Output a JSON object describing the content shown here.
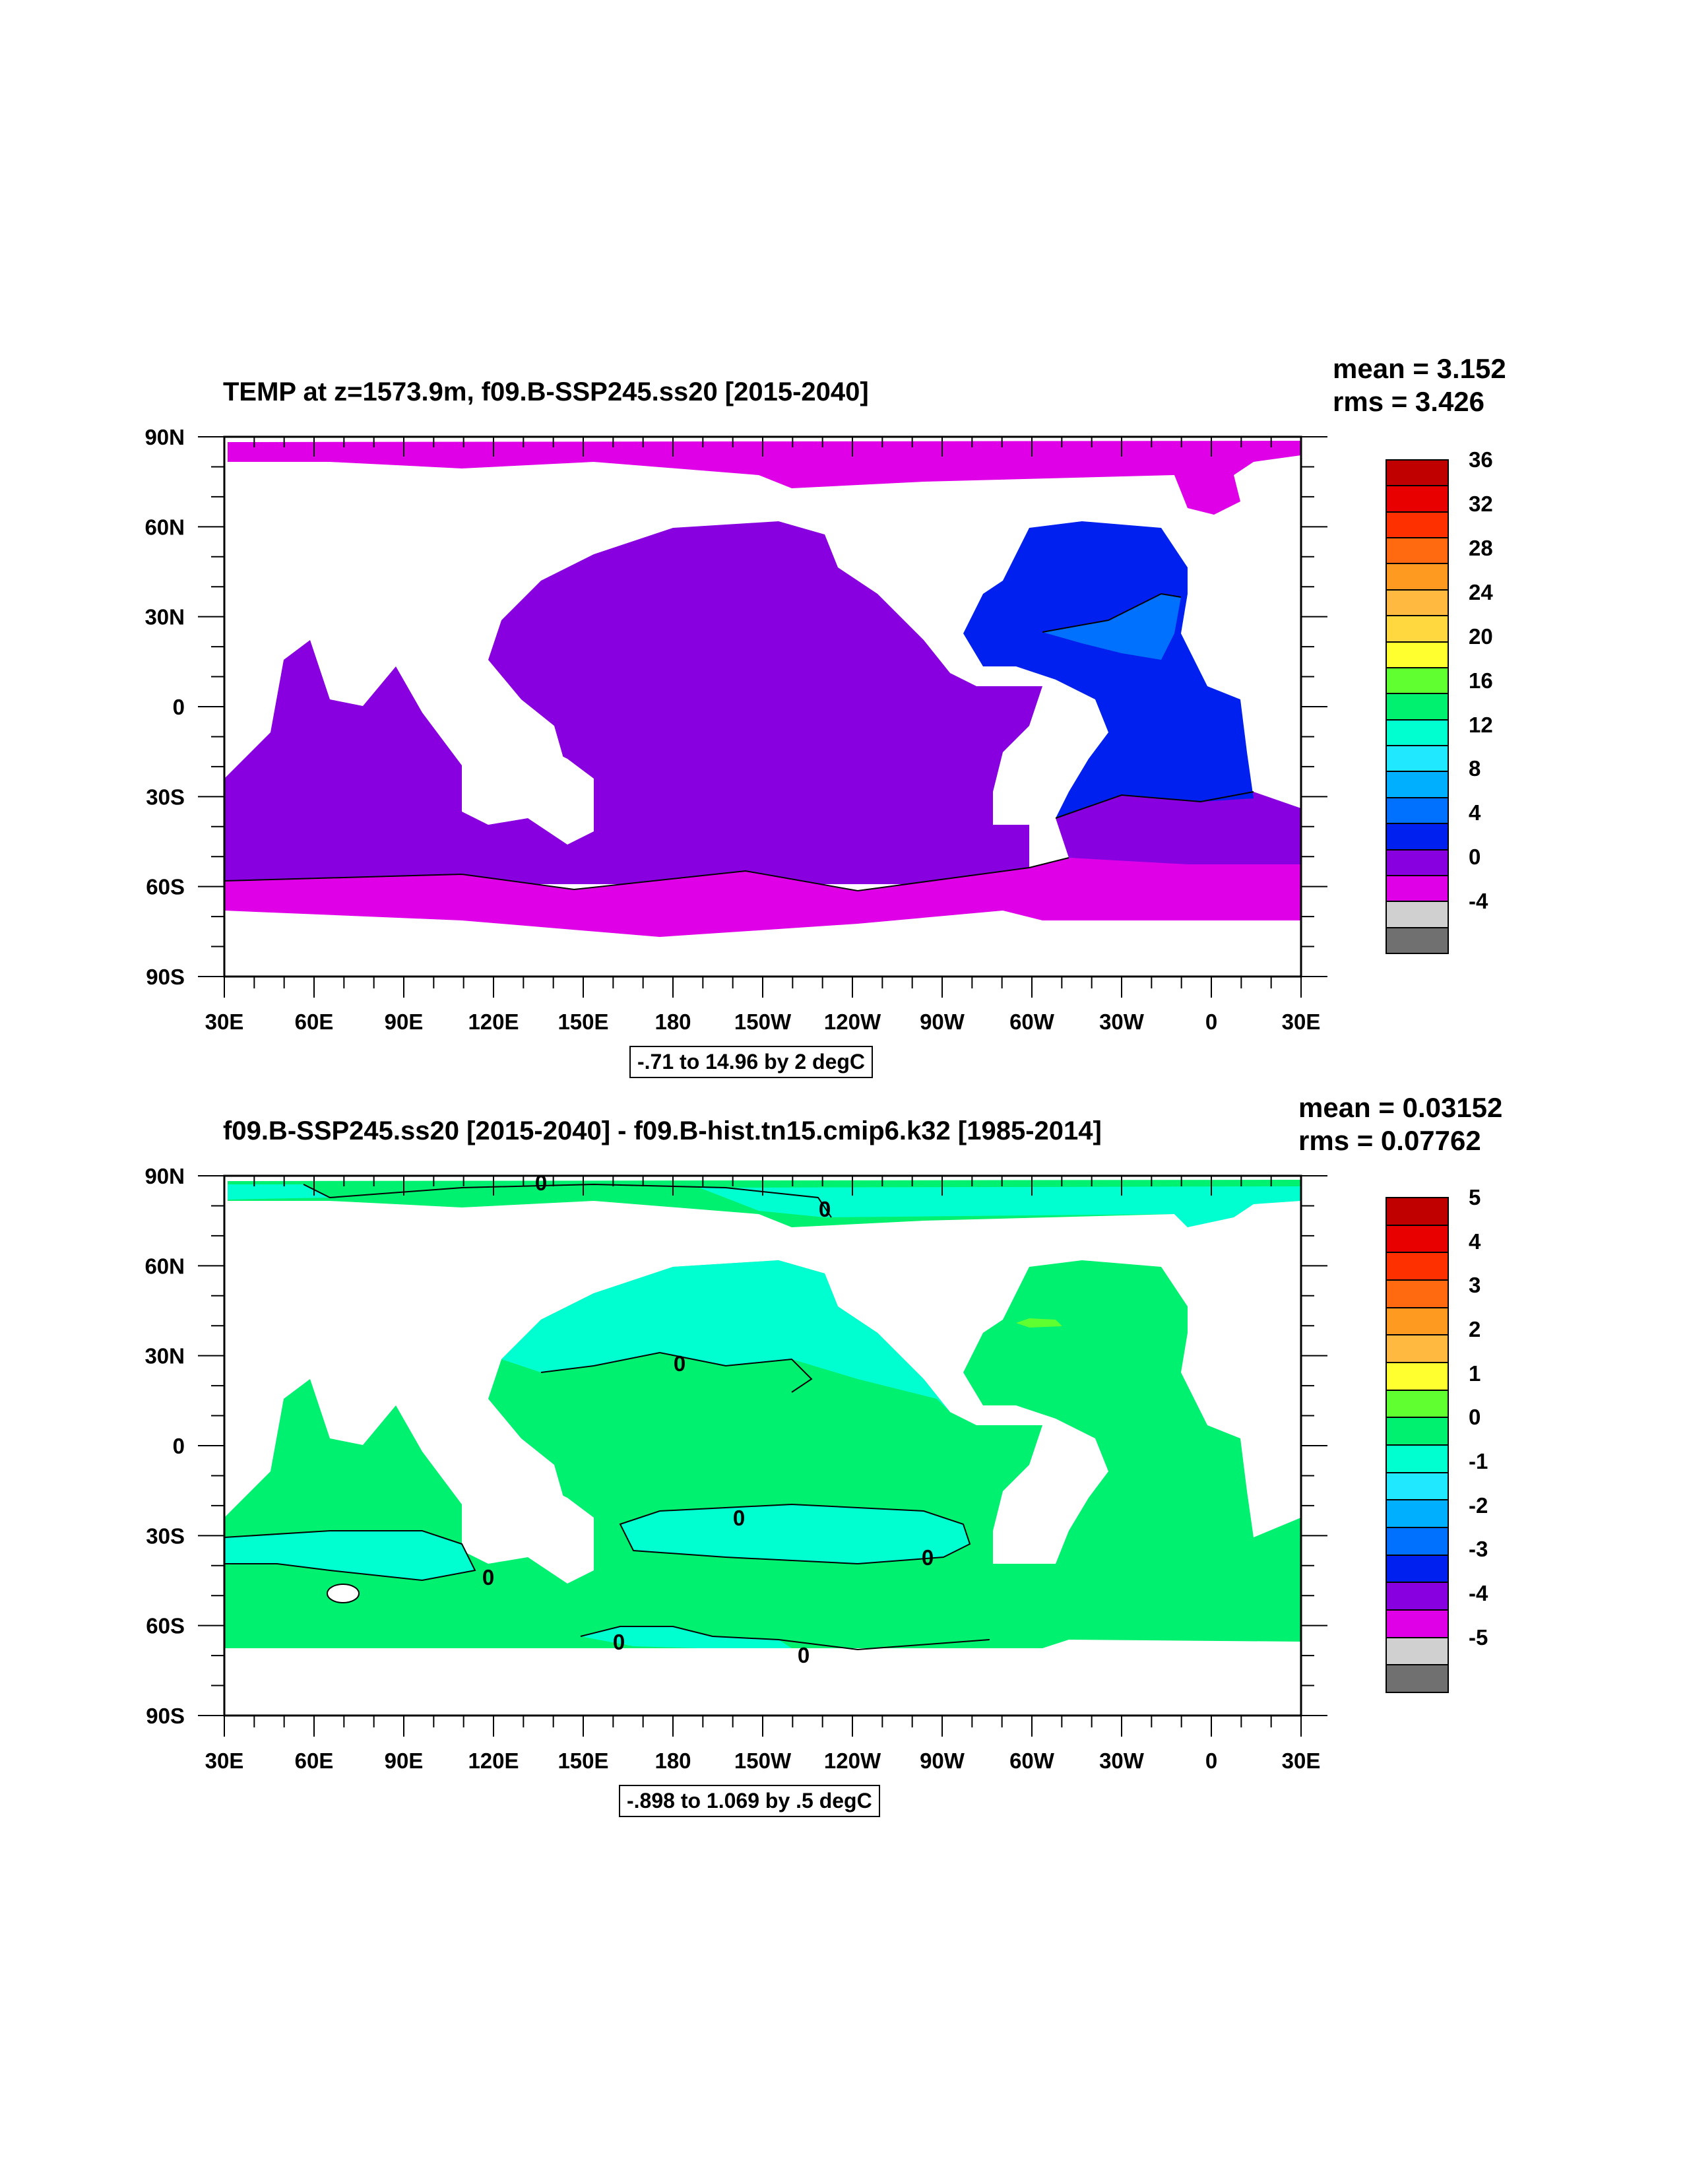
{
  "panels": [
    {
      "title": "TEMP at z=1573.9m, f09.B-SSP245.ss20 [2015-2040]",
      "stats": {
        "mean": "mean = 3.152",
        "rms": "rms = 3.426"
      },
      "range_label": "-.71 to 14.96 by 2 degC",
      "contour_label": "",
      "colorbar": {
        "labels": [
          "36",
          "32",
          "28",
          "24",
          "20",
          "16",
          "12",
          "8",
          "4",
          "0",
          "-4"
        ],
        "colors": [
          "#c00000",
          "#e80000",
          "#ff3000",
          "#ff6a10",
          "#ff9a20",
          "#ffb840",
          "#ffd840",
          "#ffff30",
          "#60ff30",
          "#00f070",
          "#00ffd0",
          "#20e8ff",
          "#00b0ff",
          "#0070ff",
          "#0020f0",
          "#8800e0",
          "#e000e8",
          "#d0d0d0",
          "#707070"
        ],
        "upper_label_gap": true
      }
    },
    {
      "title": "f09.B-SSP245.ss20 [2015-2040] - f09.B-hist.tn15.cmip6.k32 [1985-2014]",
      "stats": {
        "mean": "mean = 0.03152",
        "rms": "rms = 0.07762"
      },
      "range_label": "-.898 to 1.069 by .5 degC",
      "contour_label": "0",
      "colorbar": {
        "labels": [
          "5",
          "4",
          "3",
          "2",
          "1",
          "0",
          "-1",
          "-2",
          "-3",
          "-4",
          "-5"
        ],
        "colors": [
          "#c00000",
          "#e80000",
          "#ff3000",
          "#ff6a10",
          "#ff9a20",
          "#ffb840",
          "#ffff30",
          "#60ff30",
          "#00f070",
          "#00ffd0",
          "#20e8ff",
          "#00b0ff",
          "#0070ff",
          "#0020f0",
          "#8800e0",
          "#e000e8",
          "#d0d0d0",
          "#707070"
        ]
      }
    }
  ],
  "axes": {
    "lat_ticks": [
      "90N",
      "60N",
      "30N",
      "0",
      "30S",
      "60S",
      "90S"
    ],
    "lon_ticks": [
      "30E",
      "60E",
      "90E",
      "120E",
      "150E",
      "180",
      "150W",
      "120W",
      "90W",
      "60W",
      "30W",
      "0",
      "30E"
    ]
  },
  "colors": {
    "top": {
      "pacific_indian": "#8800e0",
      "polar": "#e000e8",
      "atlantic": "#0020f0",
      "atl_warm": "#0070ff",
      "arctic": "#e000e8",
      "land": "#ffffff"
    },
    "bottom": {
      "base": "#00f070",
      "cool": "#00ffd0",
      "warm_spot": "#60ff30",
      "land": "#ffffff"
    }
  }
}
